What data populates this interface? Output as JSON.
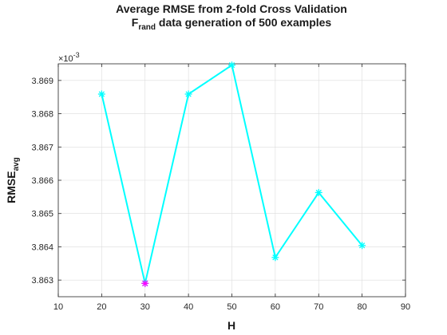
{
  "chart_data": {
    "type": "line",
    "title_line1": "Average RMSE from 2-fold Cross Validation",
    "title_line2": {
      "base": "F",
      "subscript": "rand",
      "rest": " data generation of 500 examples"
    },
    "xlabel": "H",
    "ylabel": {
      "base": "RMSE",
      "subscript": "avg"
    },
    "y_exponent_label": "×10",
    "y_exponent_power": "-3",
    "xlim": [
      10,
      90
    ],
    "ylim": [
      3.8625,
      3.8695
    ],
    "x_ticks": [
      10,
      20,
      30,
      40,
      50,
      60,
      70,
      80,
      90
    ],
    "y_ticks": [
      3.863,
      3.864,
      3.865,
      3.866,
      3.867,
      3.868,
      3.869
    ],
    "y_tick_labels": [
      "3.863",
      "3.864",
      "3.865",
      "3.866",
      "3.867",
      "3.868",
      "3.869"
    ],
    "grid": true,
    "series": [
      {
        "x": [
          20,
          30,
          40,
          50,
          60,
          70,
          80
        ],
        "y": [
          3.86859,
          3.8629,
          3.86859,
          3.86946,
          3.86368,
          3.86563,
          3.86404
        ],
        "color": "#00ffff",
        "marker": "asterisk"
      }
    ],
    "highlight": {
      "x": 30,
      "y": 3.8629,
      "color": "#ff00ff",
      "marker": "asterisk"
    }
  }
}
